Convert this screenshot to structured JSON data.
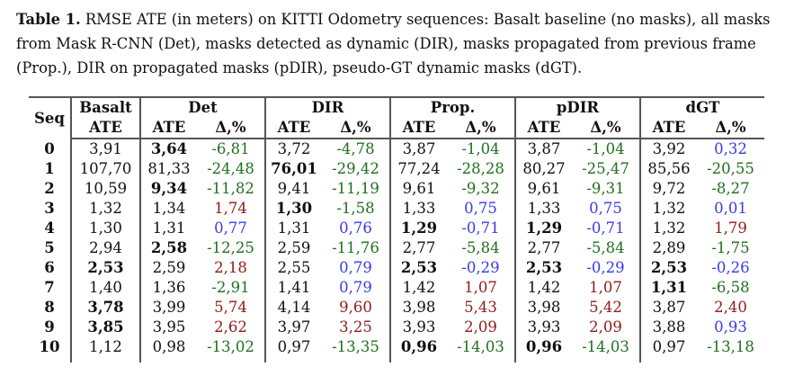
{
  "caption": {
    "label": "Table 1.",
    "lines": [
      " RMSE ATE (in meters) on KITTI Odometry sequences: Basalt baseline (no masks), all masks",
      "from Mask R-CNN (Det), masks detected as dynamic (DIR), masks propagated from previous frame",
      "(Prop.), DIR on propagated masks (pDIR), pseudo-GT dynamic masks (dGT)."
    ]
  },
  "colors": {
    "improvement": "#1f6f1f",
    "degradation": "#8e1b1b",
    "marginal": "#3a3ae6"
  },
  "table": {
    "seq_header": "Seq",
    "basalt_header": "Basalt",
    "groups": [
      "Det",
      "DIR",
      "Prop.",
      "pDIR",
      "dGT"
    ],
    "ate_label": "ATE",
    "delta_label": "Δ,%",
    "rows": [
      {
        "seq": "0",
        "cells": [
          {
            "v": "3,91"
          },
          {
            "v": "3,64",
            "bold": true
          },
          {
            "v": "-6,81",
            "c": "g"
          },
          {
            "v": "3,72"
          },
          {
            "v": "-4,78",
            "c": "g"
          },
          {
            "v": "3,87"
          },
          {
            "v": "-1,04",
            "c": "g"
          },
          {
            "v": "3,87"
          },
          {
            "v": "-1,04",
            "c": "g"
          },
          {
            "v": "3,92"
          },
          {
            "v": "0,32",
            "c": "b"
          }
        ]
      },
      {
        "seq": "1",
        "cells": [
          {
            "v": "107,70"
          },
          {
            "v": "81,33"
          },
          {
            "v": "-24,48",
            "c": "g"
          },
          {
            "v": "76,01",
            "bold": true
          },
          {
            "v": "-29,42",
            "c": "g"
          },
          {
            "v": "77,24"
          },
          {
            "v": "-28,28",
            "c": "g"
          },
          {
            "v": "80,27"
          },
          {
            "v": "-25,47",
            "c": "g"
          },
          {
            "v": "85,56"
          },
          {
            "v": "-20,55",
            "c": "g"
          }
        ]
      },
      {
        "seq": "2",
        "cells": [
          {
            "v": "10,59"
          },
          {
            "v": "9,34",
            "bold": true
          },
          {
            "v": "-11,82",
            "c": "g"
          },
          {
            "v": "9,41"
          },
          {
            "v": "-11,19",
            "c": "g"
          },
          {
            "v": "9,61"
          },
          {
            "v": "-9,32",
            "c": "g"
          },
          {
            "v": "9,61"
          },
          {
            "v": "-9,31",
            "c": "g"
          },
          {
            "v": "9,72"
          },
          {
            "v": "-8,27",
            "c": "g"
          }
        ]
      },
      {
        "seq": "3",
        "cells": [
          {
            "v": "1,32"
          },
          {
            "v": "1,34"
          },
          {
            "v": "1,74",
            "c": "r"
          },
          {
            "v": "1,30",
            "bold": true
          },
          {
            "v": "-1,58",
            "c": "g"
          },
          {
            "v": "1,33"
          },
          {
            "v": "0,75",
            "c": "b"
          },
          {
            "v": "1,33"
          },
          {
            "v": "0,75",
            "c": "b"
          },
          {
            "v": "1,32"
          },
          {
            "v": "0,01",
            "c": "b"
          }
        ]
      },
      {
        "seq": "4",
        "cells": [
          {
            "v": "1,30"
          },
          {
            "v": "1,31"
          },
          {
            "v": "0,77",
            "c": "b"
          },
          {
            "v": "1,31"
          },
          {
            "v": "0,76",
            "c": "b"
          },
          {
            "v": "1,29",
            "bold": true
          },
          {
            "v": "-0,71",
            "c": "b"
          },
          {
            "v": "1,29",
            "bold": true
          },
          {
            "v": "-0,71",
            "c": "b"
          },
          {
            "v": "1,32"
          },
          {
            "v": "1,79",
            "c": "r"
          }
        ]
      },
      {
        "seq": "5",
        "cells": [
          {
            "v": "2,94"
          },
          {
            "v": "2,58",
            "bold": true
          },
          {
            "v": "-12,25",
            "c": "g"
          },
          {
            "v": "2,59"
          },
          {
            "v": "-11,76",
            "c": "g"
          },
          {
            "v": "2,77"
          },
          {
            "v": "-5,84",
            "c": "g"
          },
          {
            "v": "2,77"
          },
          {
            "v": "-5,84",
            "c": "g"
          },
          {
            "v": "2,89"
          },
          {
            "v": "-1,75",
            "c": "g"
          }
        ]
      },
      {
        "seq": "6",
        "cells": [
          {
            "v": "2,53",
            "bold": true
          },
          {
            "v": "2,59"
          },
          {
            "v": "2,18",
            "c": "r"
          },
          {
            "v": "2,55"
          },
          {
            "v": "0,79",
            "c": "b"
          },
          {
            "v": "2,53",
            "bold": true
          },
          {
            "v": "-0,29",
            "c": "b"
          },
          {
            "v": "2,53",
            "bold": true
          },
          {
            "v": "-0,29",
            "c": "b"
          },
          {
            "v": "2,53",
            "bold": true
          },
          {
            "v": "-0,26",
            "c": "b"
          }
        ]
      },
      {
        "seq": "7",
        "cells": [
          {
            "v": "1,40"
          },
          {
            "v": "1,36"
          },
          {
            "v": "-2,91",
            "c": "g"
          },
          {
            "v": "1,41"
          },
          {
            "v": "0,79",
            "c": "b"
          },
          {
            "v": "1,42"
          },
          {
            "v": "1,07",
            "c": "r"
          },
          {
            "v": "1,42"
          },
          {
            "v": "1,07",
            "c": "r"
          },
          {
            "v": "1,31",
            "bold": true
          },
          {
            "v": "-6,58",
            "c": "g"
          }
        ]
      },
      {
        "seq": "8",
        "cells": [
          {
            "v": "3,78",
            "bold": true
          },
          {
            "v": "3,99"
          },
          {
            "v": "5,74",
            "c": "r"
          },
          {
            "v": "4,14"
          },
          {
            "v": "9,60",
            "c": "r"
          },
          {
            "v": "3,98"
          },
          {
            "v": "5,43",
            "c": "r"
          },
          {
            "v": "3,98"
          },
          {
            "v": "5,42",
            "c": "r"
          },
          {
            "v": "3,87"
          },
          {
            "v": "2,40",
            "c": "r"
          }
        ]
      },
      {
        "seq": "9",
        "cells": [
          {
            "v": "3,85",
            "bold": true
          },
          {
            "v": "3,95"
          },
          {
            "v": "2,62",
            "c": "r"
          },
          {
            "v": "3,97"
          },
          {
            "v": "3,25",
            "c": "r"
          },
          {
            "v": "3,93"
          },
          {
            "v": "2,09",
            "c": "r"
          },
          {
            "v": "3,93"
          },
          {
            "v": "2,09",
            "c": "r"
          },
          {
            "v": "3,88"
          },
          {
            "v": "0,93",
            "c": "b"
          }
        ]
      },
      {
        "seq": "10",
        "cells": [
          {
            "v": "1,12"
          },
          {
            "v": "0,98"
          },
          {
            "v": "-13,02",
            "c": "g"
          },
          {
            "v": "0,97"
          },
          {
            "v": "-13,35",
            "c": "g"
          },
          {
            "v": "0,96",
            "bold": true
          },
          {
            "v": "-14,03",
            "c": "g"
          },
          {
            "v": "0,96",
            "bold": true
          },
          {
            "v": "-14,03",
            "c": "g"
          },
          {
            "v": "0,97"
          },
          {
            "v": "-13,18",
            "c": "g"
          }
        ]
      }
    ]
  }
}
